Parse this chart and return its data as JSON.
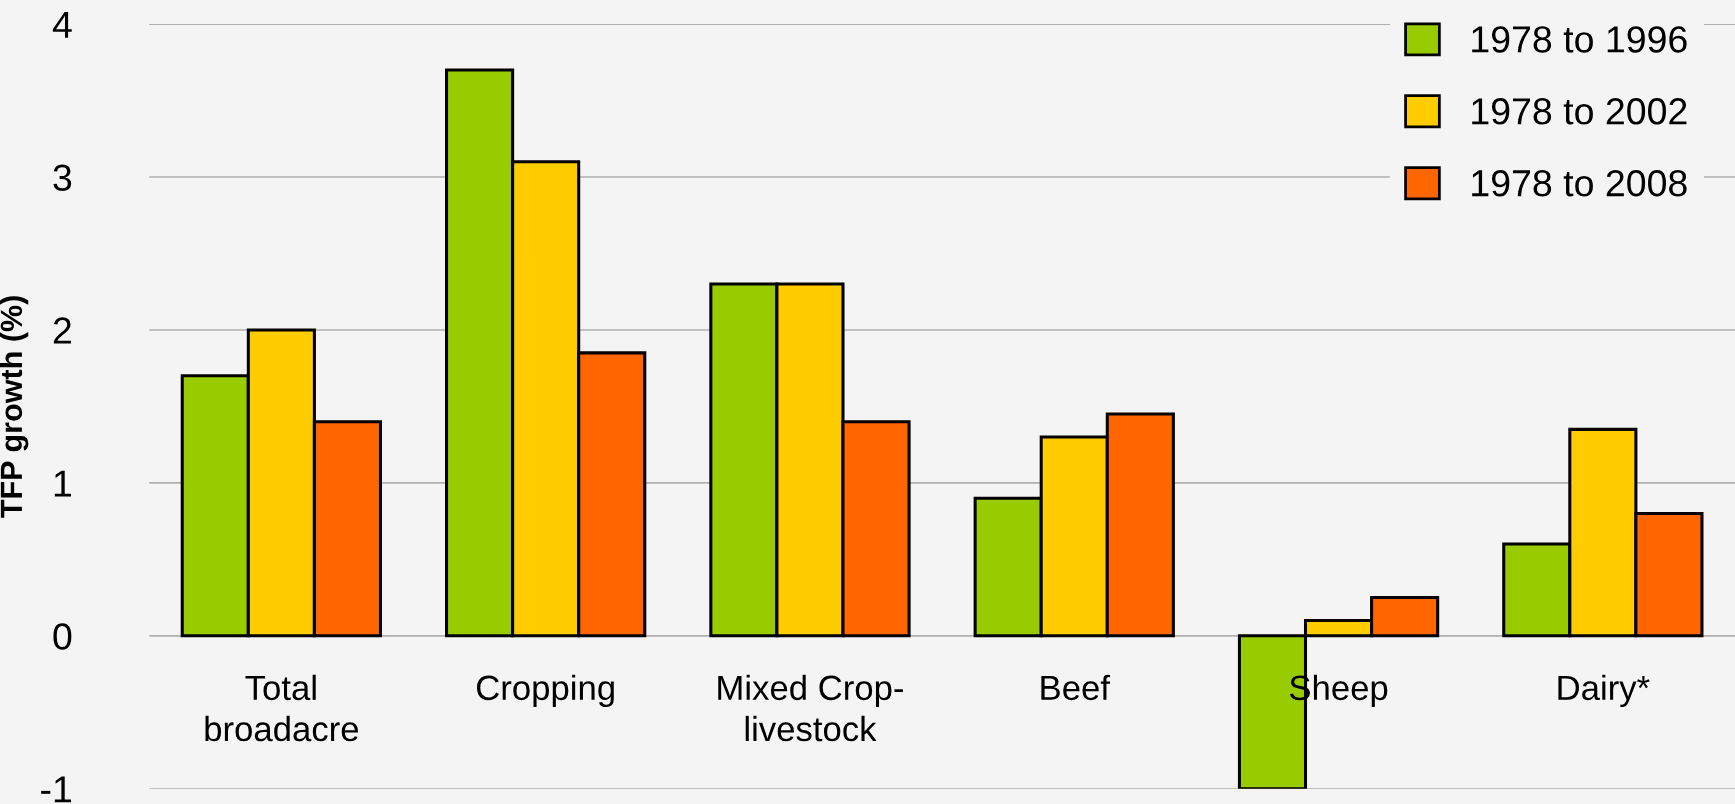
{
  "chart_data": {
    "type": "bar",
    "ylabel": "TFP growth (%)",
    "categories": [
      "Total\nbroadacre",
      "Cropping",
      "Mixed Crop-\nlivestock",
      "Beef",
      "Sheep",
      "Dairy*"
    ],
    "series": [
      {
        "name": "1978 to 1996",
        "color": "#99cc00",
        "values": [
          1.7,
          3.7,
          2.3,
          0.9,
          -1.0,
          0.6
        ]
      },
      {
        "name": "1978 to 2002",
        "color": "#ffcc00",
        "values": [
          2.0,
          3.1,
          2.3,
          1.3,
          0.1,
          1.35
        ]
      },
      {
        "name": "1978 to 2008",
        "color": "#ff6600",
        "values": [
          1.4,
          1.85,
          1.4,
          1.45,
          0.25,
          0.8
        ]
      }
    ],
    "ylim": [
      -1,
      4
    ],
    "yticks": [
      -1,
      0,
      1,
      2,
      3,
      4
    ],
    "grid": "y",
    "legend": "top right"
  }
}
